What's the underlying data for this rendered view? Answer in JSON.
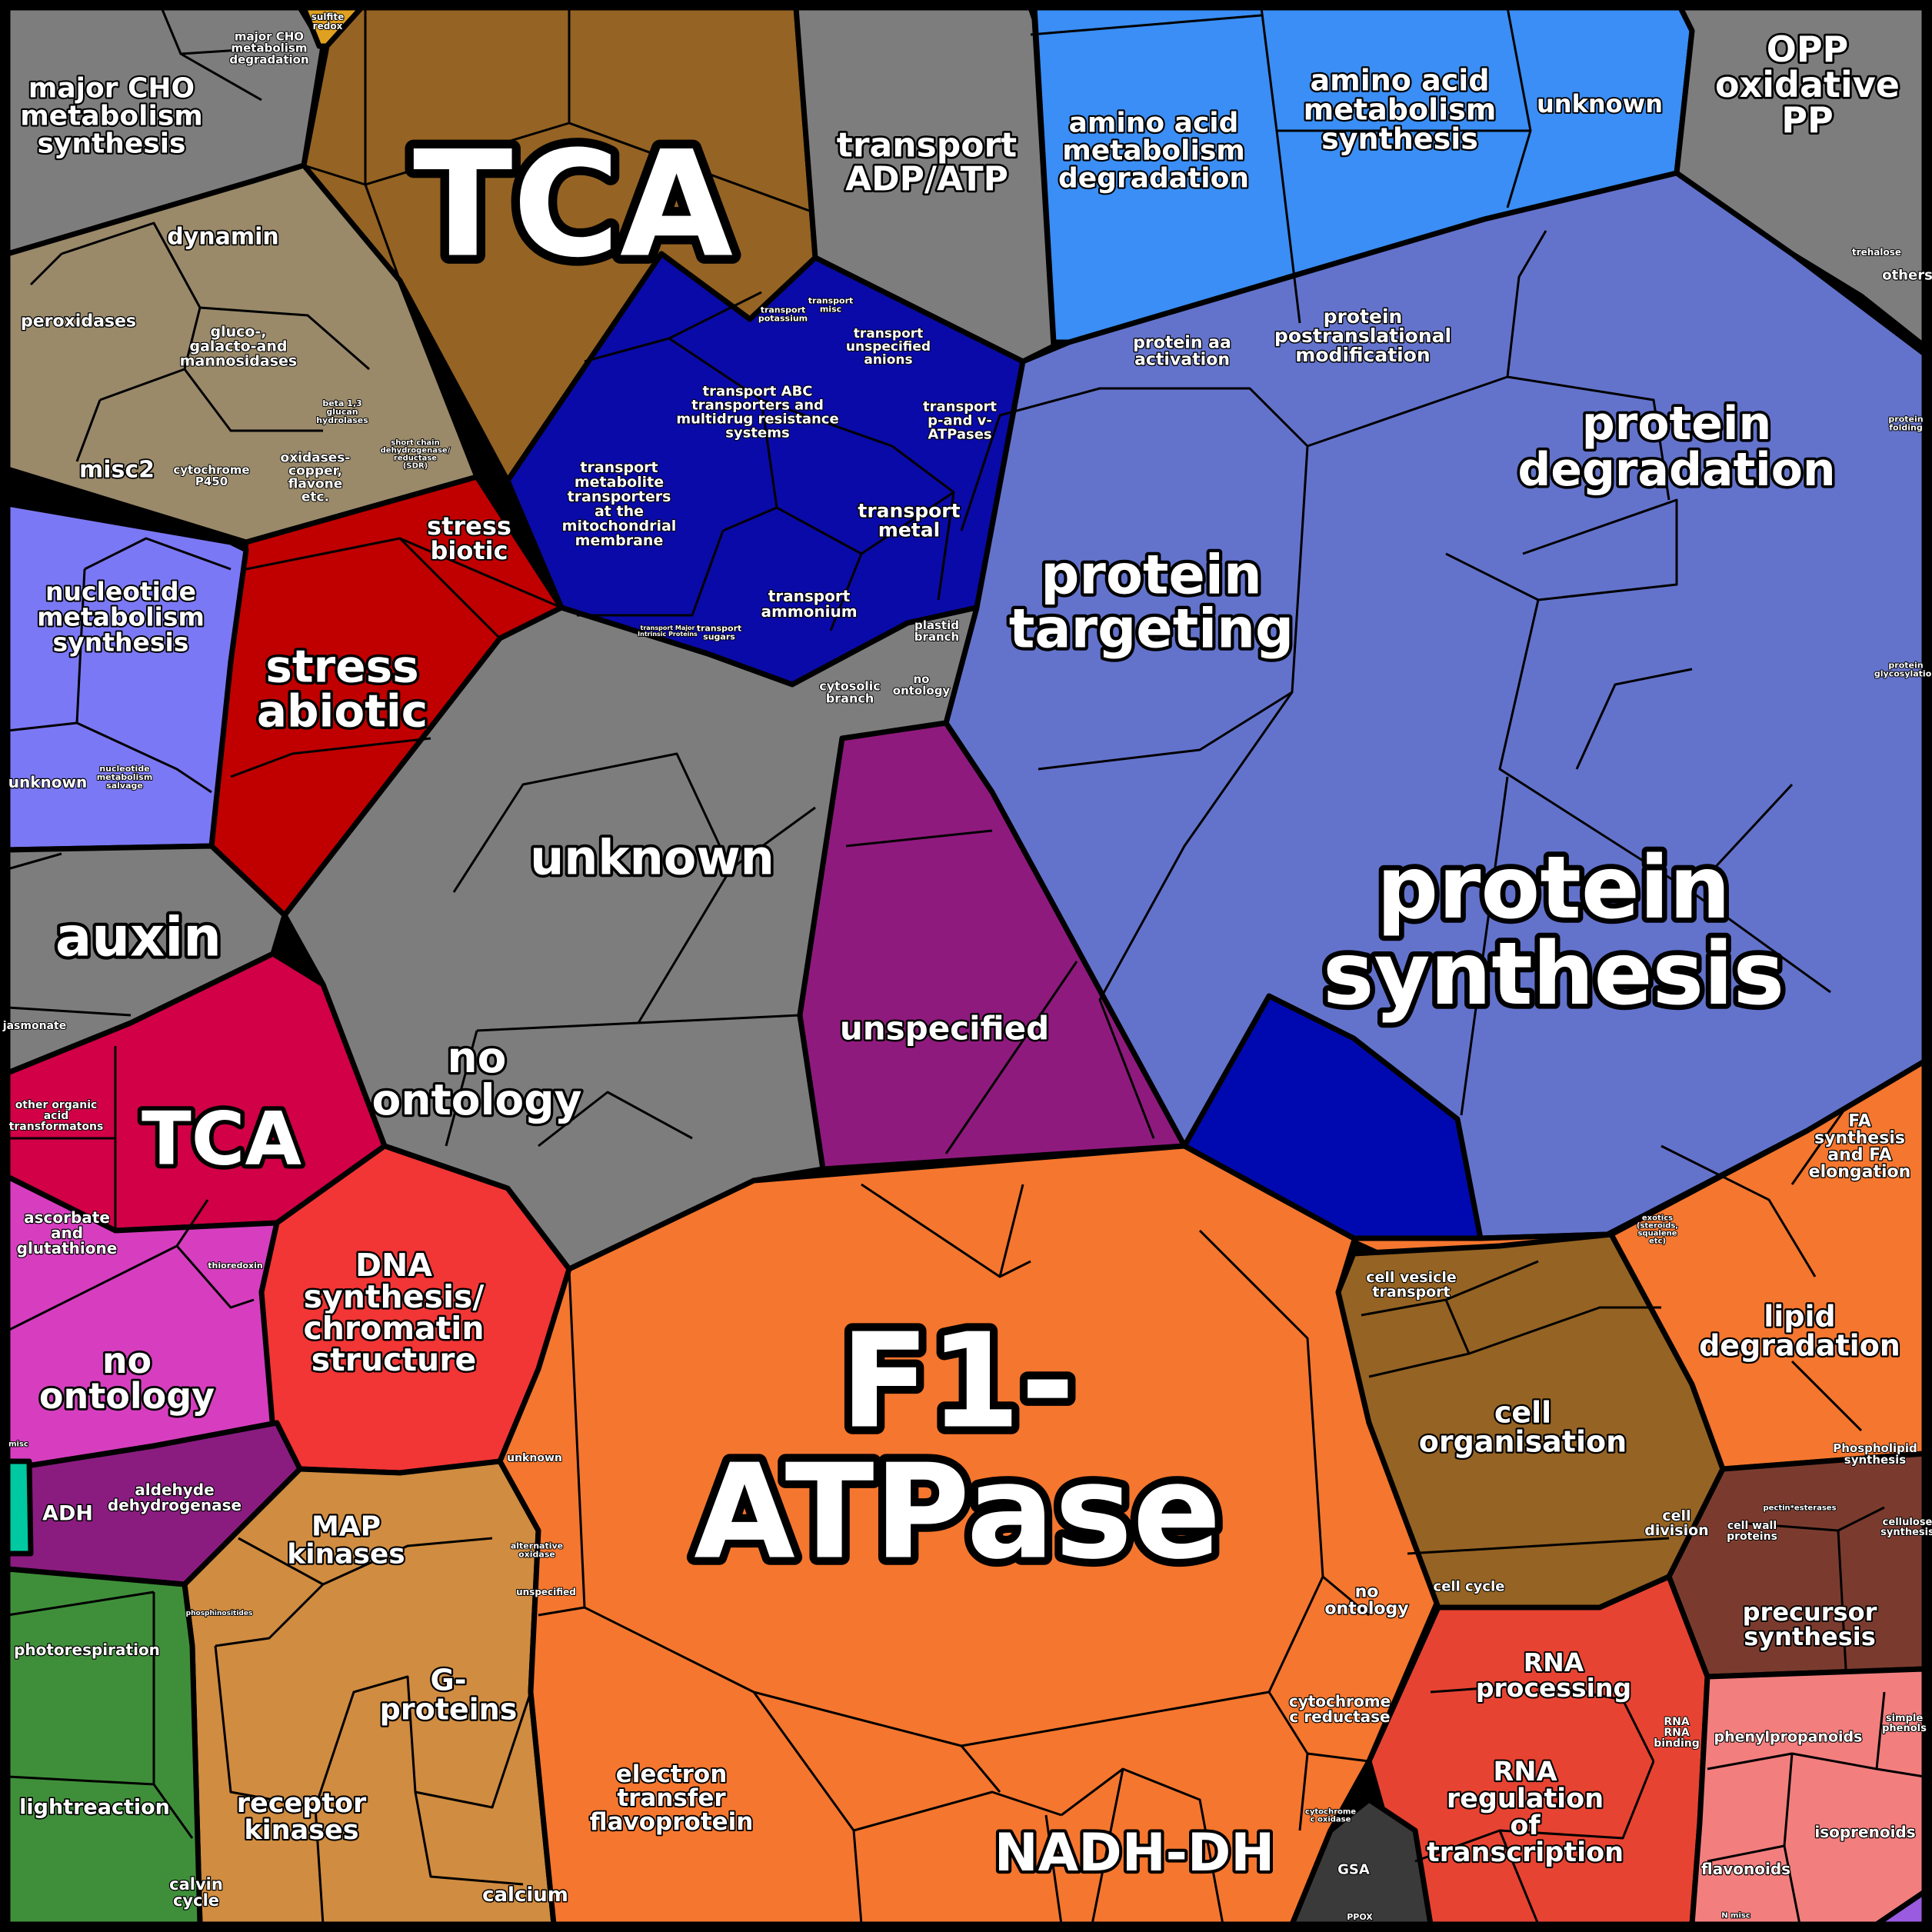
{
  "regions": [
    {
      "id": "major-cho",
      "color": "#7d7d7d",
      "labels": [
        {
          "text": "major CHO metabolism synthesis"
        },
        {
          "text": "major CHO metabolism degradation"
        }
      ]
    },
    {
      "id": "tca-top",
      "color": "#956323",
      "labels": [
        {
          "text": "TCA"
        }
      ]
    },
    {
      "id": "transport-adp",
      "color": "#7d7d7d",
      "labels": [
        {
          "text": "transport ADP/ATP"
        }
      ]
    },
    {
      "id": "amino-acid",
      "color": "#3a8ef5",
      "labels": [
        {
          "text": "amino acid metabolism degradation"
        },
        {
          "text": "amino acid metabolism synthesis"
        },
        {
          "text": "unknown"
        }
      ]
    },
    {
      "id": "opp",
      "color": "#7d7d7d",
      "labels": [
        {
          "text": "OPP oxidative PP"
        },
        {
          "text": "trehalose"
        },
        {
          "text": "others"
        }
      ]
    },
    {
      "id": "misc-tan",
      "color": "#9a8a6a",
      "labels": [
        {
          "text": "dynamin"
        },
        {
          "text": "peroxidases"
        },
        {
          "text": "gluco-, galacto-and mannosidases"
        },
        {
          "text": "misc2"
        },
        {
          "text": "cytochrome P450"
        },
        {
          "text": "oxidases-copper, flavone etc."
        },
        {
          "text": "beta 1,3 glucan hydrolases"
        },
        {
          "text": "short chain dehydrogenase/ reductase (SDR)"
        }
      ]
    },
    {
      "id": "transport-blue",
      "color": "#0a0aa8",
      "labels": [
        {
          "text": "transport potassium"
        },
        {
          "text": "transport misc"
        },
        {
          "text": "transport unspecified anions"
        },
        {
          "text": "transport ABC transporters and multidrug resistance systems"
        },
        {
          "text": "transport p-and v-ATPases"
        },
        {
          "text": "transport metabolite transporters at the mitochondrial membrane"
        },
        {
          "text": "transport metal"
        },
        {
          "text": "transport ammonium"
        },
        {
          "text": "transport Major Intrinsic Proteins"
        },
        {
          "text": "transport sugars"
        }
      ]
    },
    {
      "id": "protein",
      "color": "#6373cc",
      "labels": [
        {
          "text": "protein aa activation"
        },
        {
          "text": "protein postranslational modification"
        },
        {
          "text": "protein degradation"
        },
        {
          "text": "protein targeting"
        },
        {
          "text": "protein synthesis"
        },
        {
          "text": "protein folding"
        },
        {
          "text": "protein glycosylation"
        }
      ]
    },
    {
      "id": "stress",
      "color": "#c00000",
      "labels": [
        {
          "text": "stress biotic"
        },
        {
          "text": "stress abiotic"
        }
      ]
    },
    {
      "id": "nucleotide",
      "color": "#7b78f5",
      "labels": [
        {
          "text": "nucleotide metabolism synthesis"
        },
        {
          "text": "unknown"
        },
        {
          "text": "nucleotide metabolism salvage"
        }
      ]
    },
    {
      "id": "misc-grey",
      "color": "#7d7d7d",
      "labels": [
        {
          "text": "unknown"
        },
        {
          "text": "no ontology"
        },
        {
          "text": "plastid branch"
        },
        {
          "text": "cytosolic branch"
        },
        {
          "text": "no ontology"
        },
        {
          "text": "auxin"
        },
        {
          "text": "jasmonate"
        }
      ]
    },
    {
      "id": "unspecified",
      "color": "#8f1a7d",
      "labels": [
        {
          "text": "unspecified"
        }
      ]
    },
    {
      "id": "tca-red",
      "color": "#d10047",
      "labels": [
        {
          "text": "TCA"
        },
        {
          "text": "other organic acid transformatons"
        }
      ]
    },
    {
      "id": "redox",
      "color": "#d63ebf",
      "labels": [
        {
          "text": "ascorbate and glutathione"
        },
        {
          "text": "thioredoxin"
        },
        {
          "text": "no ontology"
        },
        {
          "text": "misc"
        }
      ]
    },
    {
      "id": "dna",
      "color": "#f23535",
      "labels": [
        {
          "text": "DNA synthesis/ chromatin structure"
        }
      ]
    },
    {
      "id": "fermentation",
      "color": "#8a1c80",
      "labels": [
        {
          "text": "ADH"
        },
        {
          "text": "aldehyde dehydrogenase"
        }
      ]
    },
    {
      "id": "signalling",
      "color": "#d08c40",
      "labels": [
        {
          "text": "MAP kinases"
        },
        {
          "text": "G-proteins"
        },
        {
          "text": "receptor kinases"
        },
        {
          "text": "calcium"
        },
        {
          "text": "phosphinositides"
        }
      ]
    },
    {
      "id": "ps",
      "color": "#3f8f3a",
      "labels": [
        {
          "text": "photorespiration"
        },
        {
          "text": "lightreaction"
        },
        {
          "text": "calvin cycle"
        }
      ]
    },
    {
      "id": "mito",
      "color": "#f5762e",
      "labels": [
        {
          "text": "F1-ATPase"
        },
        {
          "text": "unknown"
        },
        {
          "text": "alternative oxidase"
        },
        {
          "text": "unspecified"
        },
        {
          "text": "electron transfer flavoprotein"
        },
        {
          "text": "NADH-DH"
        },
        {
          "text": "no ontology"
        },
        {
          "text": "cytochrome c reductase"
        },
        {
          "text": "cytochrome c oxidase"
        }
      ]
    },
    {
      "id": "cell",
      "color": "#956323",
      "labels": [
        {
          "text": "cell vesicle transport"
        },
        {
          "text": "cell organisation"
        },
        {
          "text": "cell division"
        },
        {
          "text": "cell cycle"
        }
      ]
    },
    {
      "id": "lipid",
      "color": "#f5762e",
      "labels": [
        {
          "text": "FA synthesis and FA elongation"
        },
        {
          "text": "lipid degradation"
        },
        {
          "text": "Phospholipid synthesis"
        },
        {
          "text": "exotics (steroids, squalene etc)"
        }
      ]
    },
    {
      "id": "cellwall",
      "color": "#7a3b2e",
      "labels": [
        {
          "text": "precursor synthesis"
        },
        {
          "text": "cell wall proteins"
        },
        {
          "text": "pectin*esterases"
        },
        {
          "text": "cellulose synthesis"
        }
      ]
    },
    {
      "id": "rna",
      "color": "#e74332",
      "labels": [
        {
          "text": "RNA processing"
        },
        {
          "text": "RNA regulation of transcription"
        },
        {
          "text": "RNA binding"
        }
      ]
    },
    {
      "id": "secondary",
      "color": "#f37e7e",
      "labels": [
        {
          "text": "phenylpropanoids"
        },
        {
          "text": "isoprenoids"
        },
        {
          "text": "flavonoids"
        },
        {
          "text": "simple phenols"
        },
        {
          "text": "N misc"
        }
      ]
    },
    {
      "id": "gsa",
      "color": "#3a3a3a",
      "labels": [
        {
          "text": "GSA"
        },
        {
          "text": "PPOX"
        }
      ]
    },
    {
      "id": "sulfite",
      "color": "#e0a020",
      "labels": [
        {
          "text": "sulfite redox"
        }
      ]
    }
  ]
}
